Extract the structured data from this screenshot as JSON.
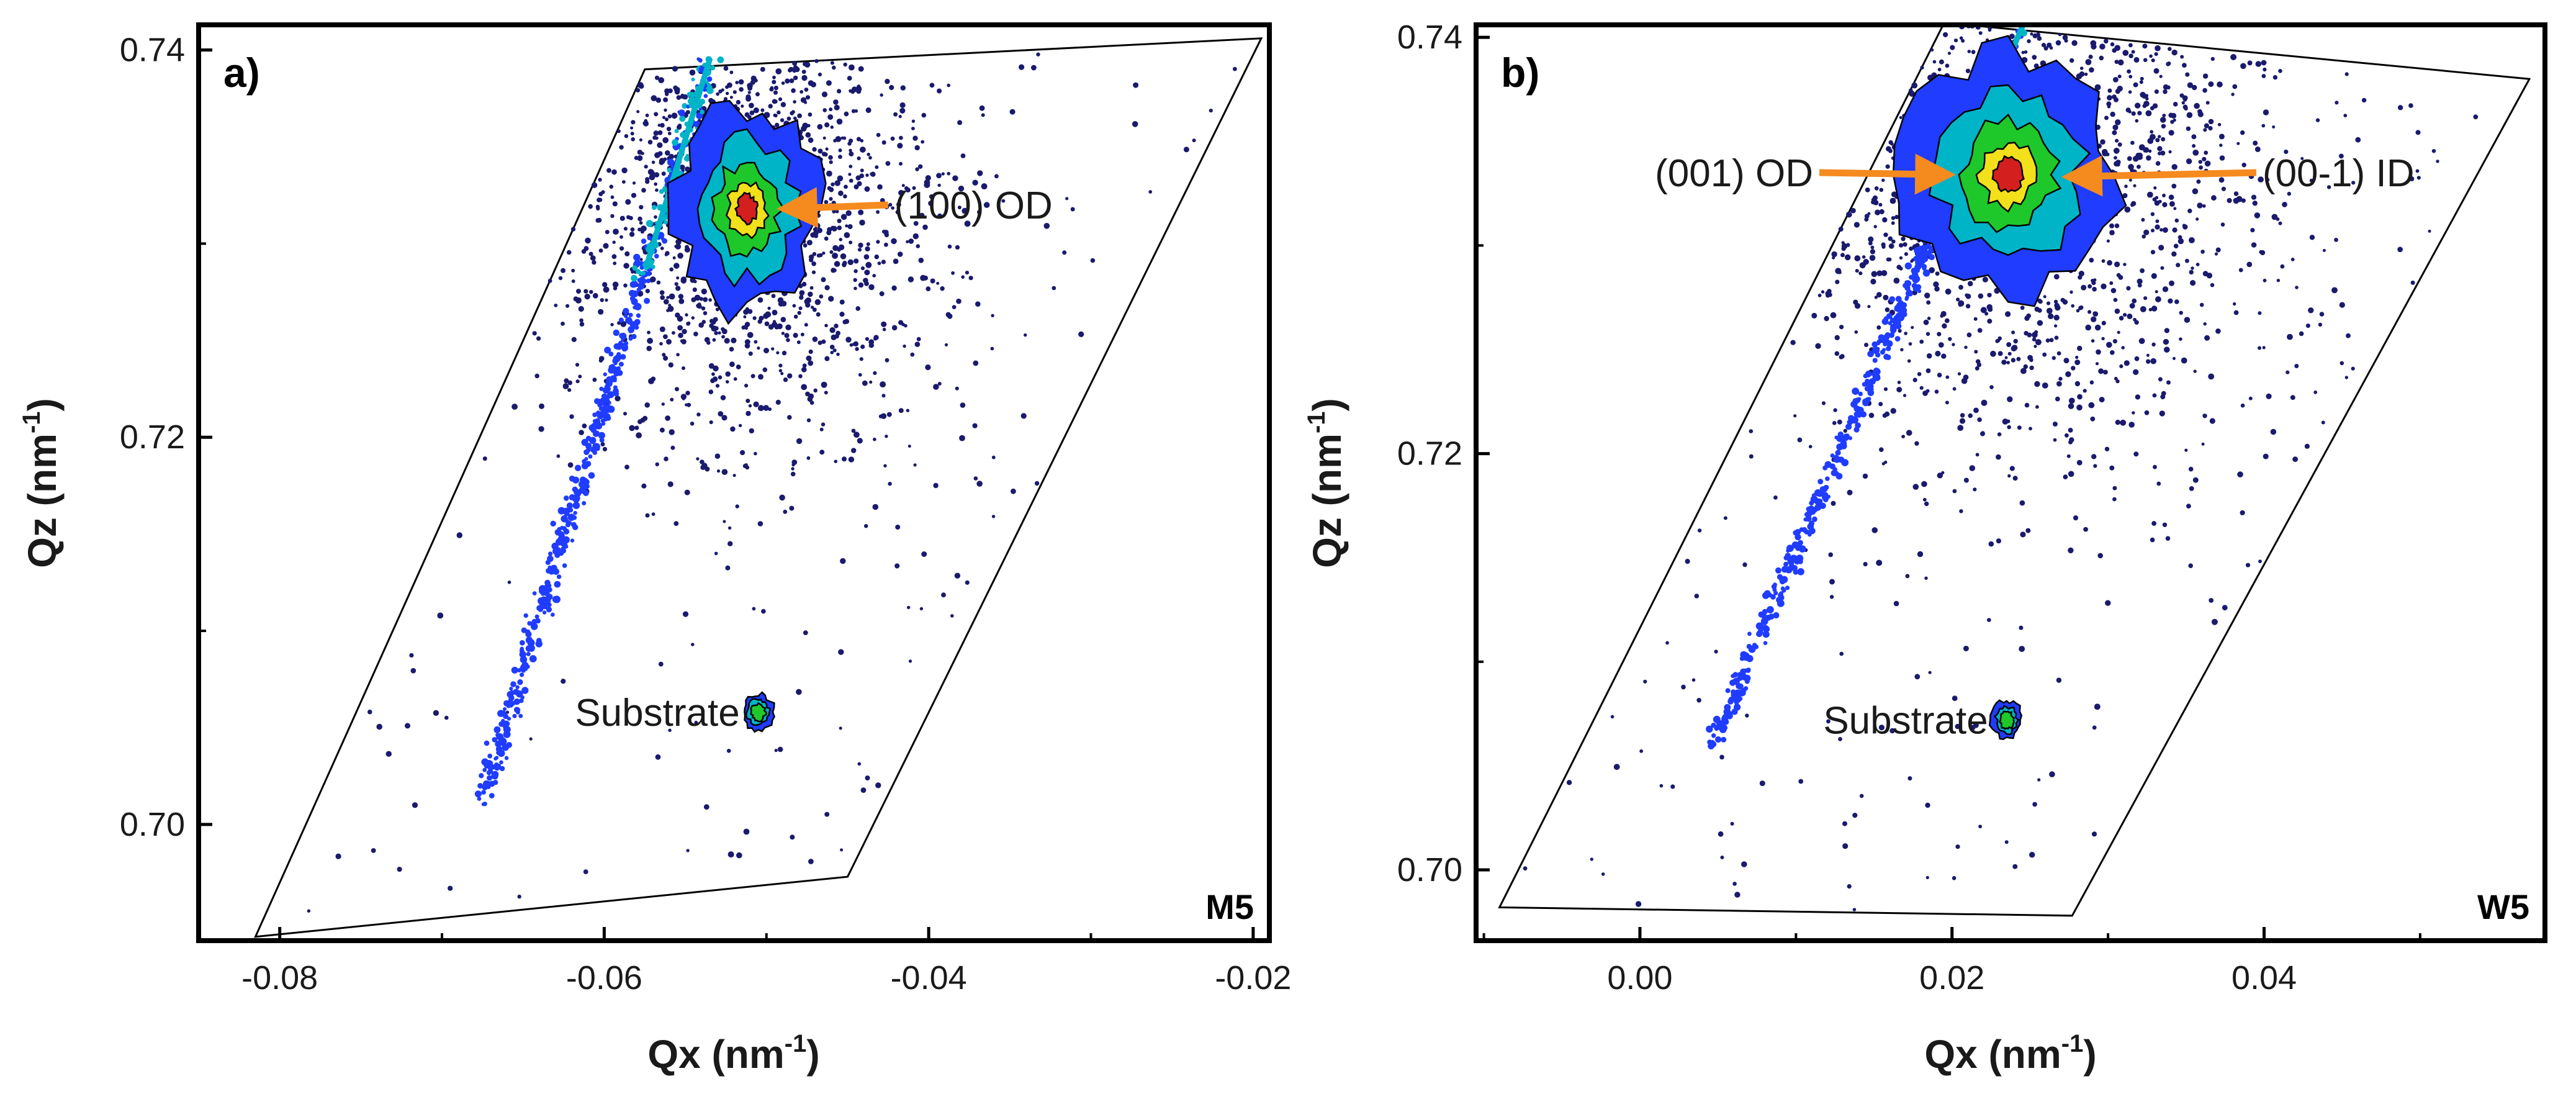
{
  "colors": {
    "axis": "#000000",
    "dots": "#1a1a6e",
    "contour_outer": "#1f3cff",
    "contour_mid": "#00b4c8",
    "contour_in": "#1fc82a",
    "contour_hot": "#f2e01a",
    "contour_core": "#d41f1f",
    "arrow": "#f58a1f"
  },
  "chart_data": [
    {
      "type": "scatter",
      "panel": "a)",
      "sample": "M5",
      "xlabel": "Qx (nm",
      "xlabel_sup": "-1",
      "xlabel_end": ")",
      "ylabel": "Qz (nm",
      "ylabel_sup": "-1",
      "ylabel_end": ")",
      "xlim": [
        -0.085,
        -0.019
      ],
      "ylim": [
        0.694,
        0.7413
      ],
      "xticks": [
        -0.08,
        -0.06,
        -0.04,
        -0.02
      ],
      "xtick_labels": [
        "-0.08",
        "-0.06",
        "-0.04",
        "-0.02"
      ],
      "yticks": [
        0.7,
        0.72,
        0.74
      ],
      "ytick_labels": [
        "0.70",
        "0.72",
        "0.74"
      ],
      "scan_region": [
        [
          -0.0815,
          0.6942
        ],
        [
          -0.045,
          0.6973
        ],
        [
          -0.0195,
          0.7406
        ],
        [
          -0.0575,
          0.739
        ]
      ],
      "streak": {
        "start": [
          -0.0675,
          0.7012
        ],
        "end": [
          -0.0535,
          0.7395
        ]
      },
      "peaks": [
        {
          "label": "(100) OD",
          "x": -0.0512,
          "y": 0.7318,
          "sx": 0.0028,
          "sy": 0.0033,
          "intensity": 1.0,
          "arrow_from": [
            -0.0425,
            0.732
          ]
        },
        {
          "label": "Substrate",
          "x": -0.0505,
          "y": 0.7058,
          "sx": 0.0006,
          "sy": 0.0006,
          "intensity": 0.55,
          "label_at": [
            -0.0505,
            0.7058
          ]
        }
      ]
    },
    {
      "type": "scatter",
      "panel": "b)",
      "sample": "W5",
      "xlabel": "Qx (nm",
      "xlabel_sup": "-1",
      "xlabel_end": ")",
      "ylabel": "Qz (nm",
      "ylabel_sup": "-1",
      "ylabel_end": ")",
      "xlim": [
        -0.0105,
        0.058
      ],
      "ylim": [
        0.6966,
        0.7406
      ],
      "xticks": [
        0.0,
        0.02,
        0.04
      ],
      "xtick_labels": [
        "0.00",
        "0.02",
        "0.04"
      ],
      "yticks": [
        0.7,
        0.72,
        0.74
      ],
      "ytick_labels": [
        "0.70",
        "0.72",
        "0.74"
      ],
      "scan_region": [
        [
          -0.009,
          0.6982
        ],
        [
          0.0277,
          0.6978
        ],
        [
          0.057,
          0.738
        ],
        [
          0.0195,
          0.7407
        ]
      ],
      "streak": {
        "start": [
          0.0045,
          0.7057
        ],
        "end": [
          0.0245,
          0.7405
        ]
      },
      "peaks": [
        {
          "label": "(001) OD",
          "x": 0.0236,
          "y": 0.7334,
          "sx": 0.0042,
          "sy": 0.0036,
          "intensity": 1.0,
          "arrow_from": [
            0.0115,
            0.7335
          ],
          "label_side": "left"
        },
        {
          "label": "(00-1) ID",
          "x": 0.026,
          "y": 0.7333,
          "sx": 0.0012,
          "sy": 0.0012,
          "intensity": 0.1,
          "arrow_from": [
            0.0395,
            0.7335
          ],
          "label_side": "right"
        },
        {
          "label": "Substrate",
          "x": 0.0235,
          "y": 0.7072,
          "sx": 0.0006,
          "sy": 0.0006,
          "intensity": 0.55,
          "label_at": [
            0.0235,
            0.7072
          ]
        }
      ]
    }
  ]
}
